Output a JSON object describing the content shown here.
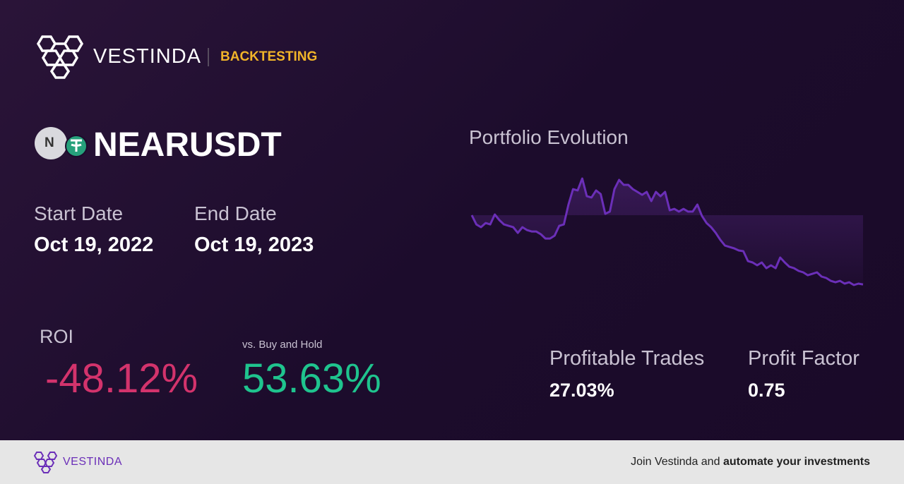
{
  "header": {
    "brand": "VESTINDA",
    "section": "BACKTESTING"
  },
  "asset": {
    "icon_letter": "N",
    "symbol": "NEARUSDT"
  },
  "start_date": {
    "label": "Start Date",
    "value": "Oct 19, 2022"
  },
  "end_date": {
    "label": "End Date",
    "value": "Oct 19, 2023"
  },
  "roi": {
    "label": "ROI",
    "value": "-48.12%"
  },
  "buy_hold": {
    "label": "vs. Buy and Hold",
    "value": "53.63%"
  },
  "profitable_trades": {
    "label": "Profitable Trades",
    "value": "27.03%"
  },
  "profit_factor": {
    "label": "Profit Factor",
    "value": "0.75"
  },
  "chart_data": {
    "type": "line",
    "title": "Portfolio Evolution",
    "color": "#6b2fb8",
    "values": [
      100,
      93.6,
      91.7,
      94.6,
      93.6,
      100.5,
      96.6,
      93.6,
      92.6,
      91.7,
      87.7,
      91.7,
      89.7,
      88.7,
      88.7,
      86.8,
      83.8,
      83.8,
      85.8,
      92.6,
      93.6,
      107.4,
      118.1,
      117.2,
      125.5,
      113.2,
      112.3,
      117.2,
      114.7,
      101,
      102.5,
      118.1,
      124.5,
      121.1,
      121.1,
      118.1,
      116.2,
      114.2,
      116.2,
      109.8,
      116.2,
      113.2,
      116.2,
      103.4,
      104.4,
      102.5,
      104.4,
      102.5,
      102.5,
      107.4,
      99.5,
      94.6,
      91.7,
      87.7,
      82.8,
      78.9,
      77.9,
      77,
      75.5,
      75,
      68.1,
      67.2,
      65.2,
      67.2,
      63.2,
      65.2,
      63.2,
      70.6,
      67.2,
      64.2,
      63.2,
      61.3,
      60.3,
      58.3,
      59.3,
      60.3,
      57.4,
      56.4,
      54.4,
      53.4,
      54.4,
      52.5,
      53.4,
      51.5,
      52.5,
      51.9
    ]
  },
  "footer": {
    "brand": "VESTINDA",
    "cta_prefix": "Join Vestinda and",
    "cta_bold": "automate your investments"
  }
}
